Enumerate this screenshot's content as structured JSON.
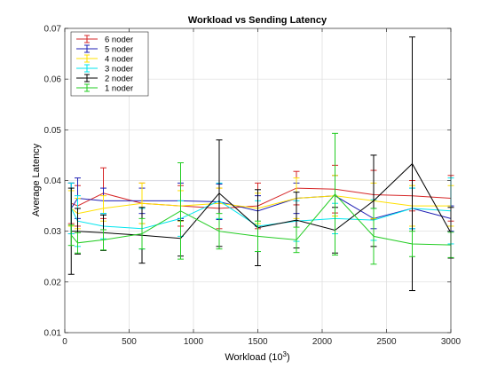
{
  "chart_data": {
    "type": "line",
    "title": "Workload vs Sending Latency",
    "xlabel": "Workload (10",
    "xlabel_exp": "3",
    "xlabel_suffix": ")",
    "ylabel": "Average Latency",
    "xlim": [
      0,
      3000
    ],
    "ylim": [
      0.01,
      0.07
    ],
    "xticks": [
      "0",
      "500",
      "1000",
      "1500",
      "2000",
      "2500",
      "3000"
    ],
    "yticks": [
      "0.01",
      "0.02",
      "0.03",
      "0.04",
      "0.05",
      "0.06",
      "0.07"
    ],
    "grid": true,
    "legend_position": "top-left",
    "error_bars": true,
    "x": [
      50,
      100,
      300,
      600,
      900,
      1200,
      1500,
      1800,
      2100,
      2400,
      2700,
      3000
    ],
    "series": [
      {
        "name": "6 noder",
        "color": "#d62728",
        "values": [
          0.0355,
          0.035,
          0.0375,
          0.0355,
          0.035,
          0.0345,
          0.035,
          0.0385,
          0.0383,
          0.0372,
          0.037,
          0.0365
        ],
        "err": [
          0.004,
          0.004,
          0.005,
          0.004,
          0.004,
          0.004,
          0.0045,
          0.0033,
          0.0047,
          0.0048,
          0.003,
          0.0045
        ]
      },
      {
        "name": "5 noder",
        "color": "#1f1fb4",
        "values": [
          0.0345,
          0.0365,
          0.036,
          0.036,
          0.036,
          0.0358,
          0.034,
          0.0365,
          0.037,
          0.0325,
          0.0345,
          0.0325
        ],
        "err": [
          0.005,
          0.004,
          0.0025,
          0.0025,
          0.0035,
          0.0035,
          0.003,
          0.003,
          0.004,
          0.002,
          0.004,
          0.0025
        ]
      },
      {
        "name": "4 noder",
        "color": "#ffe000",
        "values": [
          0.0345,
          0.0335,
          0.0345,
          0.0355,
          0.035,
          0.0355,
          0.0345,
          0.0365,
          0.037,
          0.036,
          0.035,
          0.035
        ],
        "err": [
          0.0035,
          0.003,
          0.0025,
          0.004,
          0.003,
          0.003,
          0.003,
          0.004,
          0.004,
          0.0035,
          0.004,
          0.004
        ]
      },
      {
        "name": "3 noder",
        "color": "#00e5ee",
        "values": [
          0.0345,
          0.032,
          0.031,
          0.0305,
          0.0325,
          0.036,
          0.031,
          0.032,
          0.0325,
          0.0322,
          0.0345,
          0.034
        ],
        "err": [
          0.005,
          0.005,
          0.0025,
          0.004,
          0.0035,
          0.0035,
          0.005,
          0.004,
          0.003,
          0.004,
          0.004,
          0.0065
        ]
      },
      {
        "name": "2 noder",
        "color": "#000000",
        "values": [
          0.03,
          0.03,
          0.0297,
          0.0292,
          0.0286,
          0.0375,
          0.0307,
          0.0322,
          0.0302,
          0.036,
          0.0433,
          0.0297
        ],
        "err": [
          0.0085,
          0.0045,
          0.0035,
          0.0055,
          0.0035,
          0.0105,
          0.0075,
          0.0055,
          0.0045,
          0.009,
          0.025,
          0.005
        ]
      },
      {
        "name": "1 noder",
        "color": "#22cc22",
        "values": [
          0.0292,
          0.0277,
          0.0283,
          0.0295,
          0.034,
          0.03,
          0.029,
          0.0283,
          0.0373,
          0.029,
          0.0275,
          0.0273
        ],
        "err": [
          0.002,
          0.002,
          0.002,
          0.003,
          0.0095,
          0.0035,
          0.003,
          0.0025,
          0.012,
          0.0055,
          0.0025,
          0.0025
        ]
      }
    ]
  }
}
